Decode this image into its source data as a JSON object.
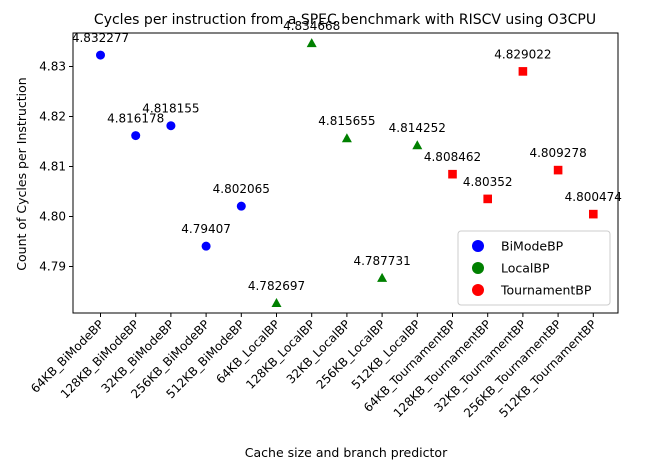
{
  "chart_data": {
    "type": "scatter",
    "title": "Cycles per instruction from a SPEC benchmark with RISCV using O3CPU",
    "xlabel": "Cache size and branch predictor",
    "ylabel": "Count of Cycles per Instruction",
    "categories": [
      "64KB_BiModeBP",
      "128KB_BiModeBP",
      "32KB_BiModeBP",
      "256KB_BiModeBP",
      "512KB_BiModeBP",
      "64KB_LocalBP",
      "128KB_LocalBP",
      "32KB_LocalBP",
      "256KB_LocalBP",
      "512KB_LocalBP",
      "64KB_TournamentBP",
      "128KB_TournamentBP",
      "32KB_TournamentBP",
      "256KB_TournamentBP",
      "512KB_TournamentBP"
    ],
    "series": [
      {
        "name": "BiModeBP",
        "color": "#0000ff",
        "marker": "circle",
        "points": [
          {
            "x": "64KB_BiModeBP",
            "y": 4.832277,
            "label": "4.832277"
          },
          {
            "x": "128KB_BiModeBP",
            "y": 4.816178,
            "label": "4.816178"
          },
          {
            "x": "32KB_BiModeBP",
            "y": 4.818155,
            "label": "4.818155"
          },
          {
            "x": "256KB_BiModeBP",
            "y": 4.79407,
            "label": "4.79407"
          },
          {
            "x": "512KB_BiModeBP",
            "y": 4.802065,
            "label": "4.802065"
          }
        ]
      },
      {
        "name": "LocalBP",
        "color": "#008000",
        "marker": "triangle",
        "points": [
          {
            "x": "64KB_LocalBP",
            "y": 4.782697,
            "label": "4.782697"
          },
          {
            "x": "128KB_LocalBP",
            "y": 4.834668,
            "label": "4.834668"
          },
          {
            "x": "32KB_LocalBP",
            "y": 4.815655,
            "label": "4.815655"
          },
          {
            "x": "256KB_LocalBP",
            "y": 4.787731,
            "label": "4.787731"
          },
          {
            "x": "512KB_LocalBP",
            "y": 4.814252,
            "label": "4.814252"
          }
        ]
      },
      {
        "name": "TournamentBP",
        "color": "#ff0000",
        "marker": "square",
        "points": [
          {
            "x": "64KB_TournamentBP",
            "y": 4.808462,
            "label": "4.808462"
          },
          {
            "x": "128KB_TournamentBP",
            "y": 4.80352,
            "label": "4.80352"
          },
          {
            "x": "32KB_TournamentBP",
            "y": 4.829022,
            "label": "4.829022"
          },
          {
            "x": "256KB_TournamentBP",
            "y": 4.809278,
            "label": "4.809278"
          },
          {
            "x": "512KB_TournamentBP",
            "y": 4.800474,
            "label": "4.800474"
          }
        ]
      }
    ],
    "yticks": [
      4.79,
      4.8,
      4.81,
      4.82,
      4.83
    ],
    "ytick_labels": [
      "4.79",
      "4.80",
      "4.81",
      "4.82",
      "4.83"
    ],
    "ylim": [
      4.7807,
      4.8367
    ],
    "grid": false,
    "legend": {
      "position": "lower-right",
      "entries": [
        "BiModeBP",
        "LocalBP",
        "TournamentBP"
      ]
    }
  }
}
